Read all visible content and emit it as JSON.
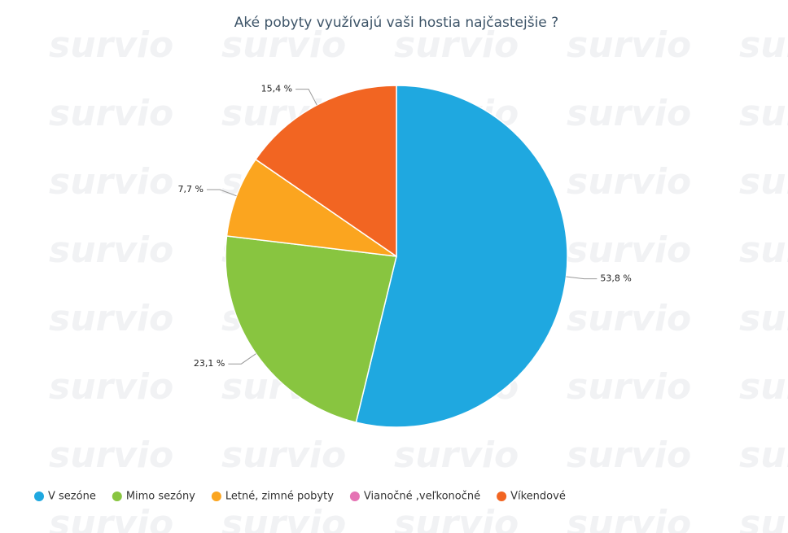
{
  "chart_data": {
    "type": "pie",
    "title": "Aké pobyty využívajú vaši hostia najčastejšie ?",
    "watermark": "survio",
    "categories": [
      "V sezóne",
      "Mimo sezóny",
      "Letné, zimné pobyty",
      "Vianočné ,veľkonočné",
      "Víkendové"
    ],
    "values": [
      53.8,
      23.1,
      7.7,
      0,
      15.4
    ],
    "value_labels": [
      "53,8 %",
      "23,1 %",
      "7,7 %",
      null,
      "15,4 %"
    ],
    "colors": [
      "#1fa8e0",
      "#88c540",
      "#fba51f",
      "#e573b4",
      "#f26522"
    ],
    "legend": "bottom"
  }
}
